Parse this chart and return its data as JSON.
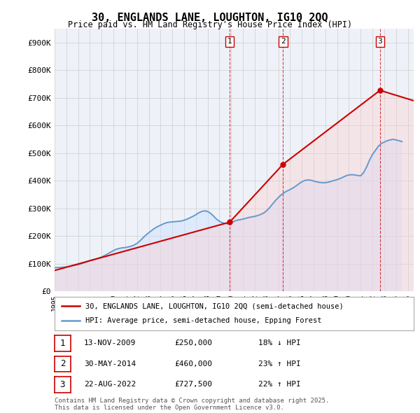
{
  "title": "30, ENGLANDS LANE, LOUGHTON, IG10 2QQ",
  "subtitle": "Price paid vs. HM Land Registry's House Price Index (HPI)",
  "ylim": [
    0,
    950000
  ],
  "yticks": [
    0,
    100000,
    200000,
    300000,
    400000,
    500000,
    600000,
    700000,
    800000,
    900000
  ],
  "ytick_labels": [
    "£0",
    "£100K",
    "£200K",
    "£300K",
    "£400K",
    "£500K",
    "£600K",
    "£700K",
    "£800K",
    "£900K"
  ],
  "sale_color": "#cc0000",
  "hpi_color": "#6699cc",
  "sale_fill_color": "#ffcccc",
  "hpi_fill_color": "#cce0ff",
  "background_color": "#eef2f8",
  "sale_label": "30, ENGLANDS LANE, LOUGHTON, IG10 2QQ (semi-detached house)",
  "hpi_label": "HPI: Average price, semi-detached house, Epping Forest",
  "transactions": [
    {
      "num": 1,
      "date": "13-NOV-2009",
      "price": 250000,
      "pct": "18%",
      "dir": "↓",
      "x": 2009.87
    },
    {
      "num": 2,
      "date": "30-MAY-2014",
      "price": 460000,
      "pct": "23%",
      "dir": "↑",
      "x": 2014.41
    },
    {
      "num": 3,
      "date": "22-AUG-2022",
      "price": 727500,
      "pct": "22%",
      "dir": "↑",
      "x": 2022.64
    }
  ],
  "vline_color": "#cc0000",
  "footnote": "Contains HM Land Registry data © Crown copyright and database right 2025.\nThis data is licensed under the Open Government Licence v3.0.",
  "hpi_data_x": [
    1995.0,
    1995.25,
    1995.5,
    1995.75,
    1996.0,
    1996.25,
    1996.5,
    1996.75,
    1997.0,
    1997.25,
    1997.5,
    1997.75,
    1998.0,
    1998.25,
    1998.5,
    1998.75,
    1999.0,
    1999.25,
    1999.5,
    1999.75,
    2000.0,
    2000.25,
    2000.5,
    2000.75,
    2001.0,
    2001.25,
    2001.5,
    2001.75,
    2002.0,
    2002.25,
    2002.5,
    2002.75,
    2003.0,
    2003.25,
    2003.5,
    2003.75,
    2004.0,
    2004.25,
    2004.5,
    2004.75,
    2005.0,
    2005.25,
    2005.5,
    2005.75,
    2006.0,
    2006.25,
    2006.5,
    2006.75,
    2007.0,
    2007.25,
    2007.5,
    2007.75,
    2008.0,
    2008.25,
    2008.5,
    2008.75,
    2009.0,
    2009.25,
    2009.5,
    2009.75,
    2010.0,
    2010.25,
    2010.5,
    2010.75,
    2011.0,
    2011.25,
    2011.5,
    2011.75,
    2012.0,
    2012.25,
    2012.5,
    2012.75,
    2013.0,
    2013.25,
    2013.5,
    2013.75,
    2014.0,
    2014.25,
    2014.5,
    2014.75,
    2015.0,
    2015.25,
    2015.5,
    2015.75,
    2016.0,
    2016.25,
    2016.5,
    2016.75,
    2017.0,
    2017.25,
    2017.5,
    2017.75,
    2018.0,
    2018.25,
    2018.5,
    2018.75,
    2019.0,
    2019.25,
    2019.5,
    2019.75,
    2020.0,
    2020.25,
    2020.5,
    2020.75,
    2021.0,
    2021.25,
    2021.5,
    2021.75,
    2022.0,
    2022.25,
    2022.5,
    2022.75,
    2023.0,
    2023.25,
    2023.5,
    2023.75,
    2024.0,
    2024.25,
    2024.5
  ],
  "hpi_data_y": [
    85000,
    85500,
    86000,
    87000,
    88000,
    90000,
    92000,
    94000,
    96000,
    99000,
    103000,
    107000,
    111000,
    114000,
    117000,
    120000,
    124000,
    129000,
    135000,
    141000,
    147000,
    152000,
    155000,
    157000,
    158000,
    160000,
    163000,
    167000,
    173000,
    182000,
    193000,
    203000,
    212000,
    220000,
    228000,
    234000,
    239000,
    244000,
    248000,
    250000,
    251000,
    252000,
    253000,
    254000,
    257000,
    261000,
    266000,
    271000,
    277000,
    284000,
    289000,
    291000,
    289000,
    282000,
    272000,
    261000,
    253000,
    248000,
    245000,
    244000,
    248000,
    253000,
    257000,
    259000,
    261000,
    264000,
    267000,
    269000,
    271000,
    274000,
    278000,
    283000,
    291000,
    302000,
    315000,
    328000,
    339000,
    349000,
    357000,
    363000,
    368000,
    374000,
    381000,
    389000,
    396000,
    401000,
    403000,
    402000,
    399000,
    396000,
    394000,
    393000,
    393000,
    395000,
    398000,
    401000,
    404000,
    408000,
    413000,
    418000,
    421000,
    422000,
    421000,
    419000,
    418000,
    430000,
    450000,
    475000,
    495000,
    510000,
    525000,
    535000,
    540000,
    545000,
    548000,
    550000,
    548000,
    545000,
    542000
  ],
  "xmin": 1995.0,
  "xmax": 2025.5
}
